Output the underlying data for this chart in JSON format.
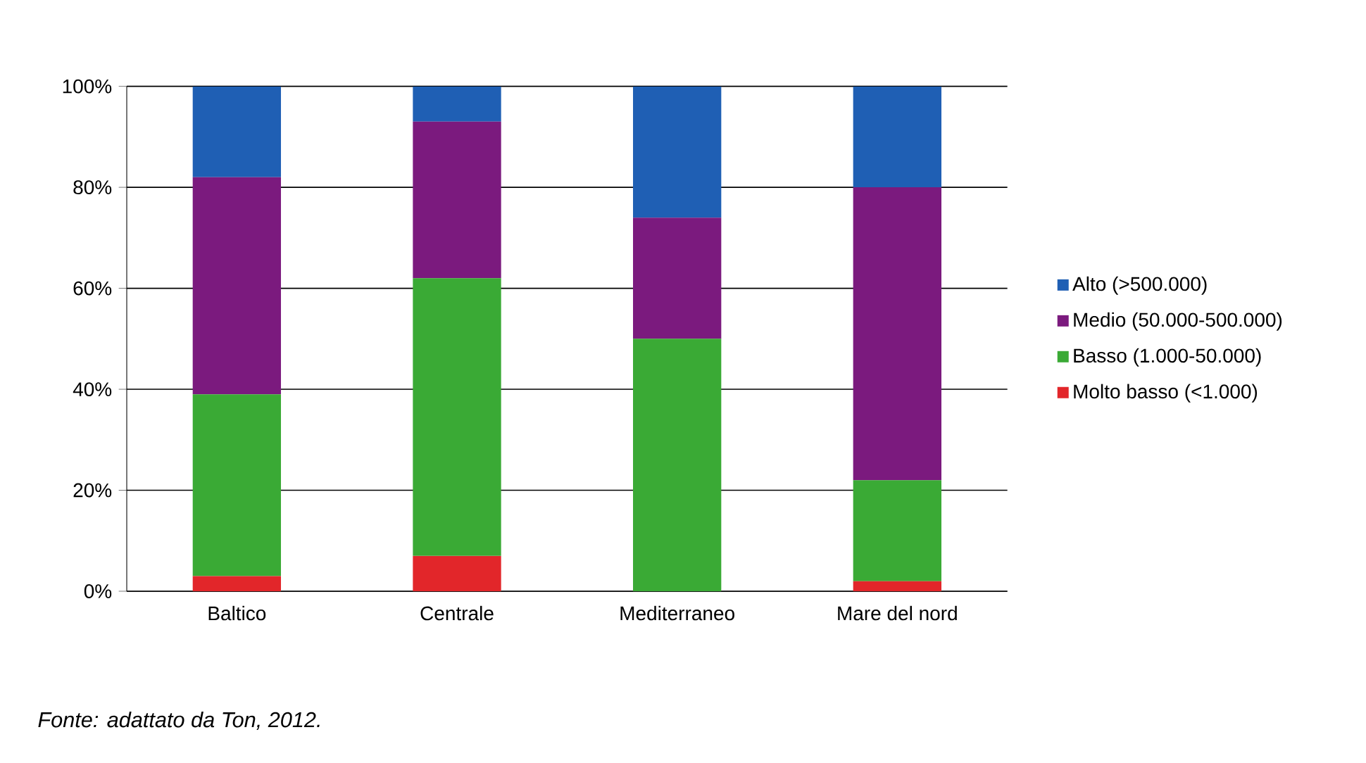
{
  "chart_data": {
    "type": "bar",
    "stacked": true,
    "categories": [
      "Baltico",
      "Centrale",
      "Mediterraneo",
      "Mare del nord"
    ],
    "series": [
      {
        "name": "Molto basso (<1.000)",
        "color": "#e2262a",
        "values": [
          3,
          7,
          0,
          2
        ]
      },
      {
        "name": "Basso (1.000-50.000)",
        "color": "#3aaa35",
        "values": [
          36,
          55,
          50,
          20
        ]
      },
      {
        "name": "Medio (50.000-500.000)",
        "color": "#7b1a7e",
        "values": [
          43,
          31,
          24,
          58
        ]
      },
      {
        "name": "Alto (>500.000)",
        "color": "#1f5fb4",
        "values": [
          18,
          7,
          26,
          20
        ]
      }
    ],
    "ylim": [
      0,
      100
    ],
    "yticks": [
      {
        "value": 0,
        "label": "0%"
      },
      {
        "value": 20,
        "label": "20%"
      },
      {
        "value": 40,
        "label": "40%"
      },
      {
        "value": 60,
        "label": "60%"
      },
      {
        "value": 80,
        "label": "80%"
      },
      {
        "value": 100,
        "label": "100%"
      }
    ],
    "grid": "y",
    "legend": "right",
    "annotations": [
      "Fonte: adattato da Ton, 2012."
    ]
  }
}
